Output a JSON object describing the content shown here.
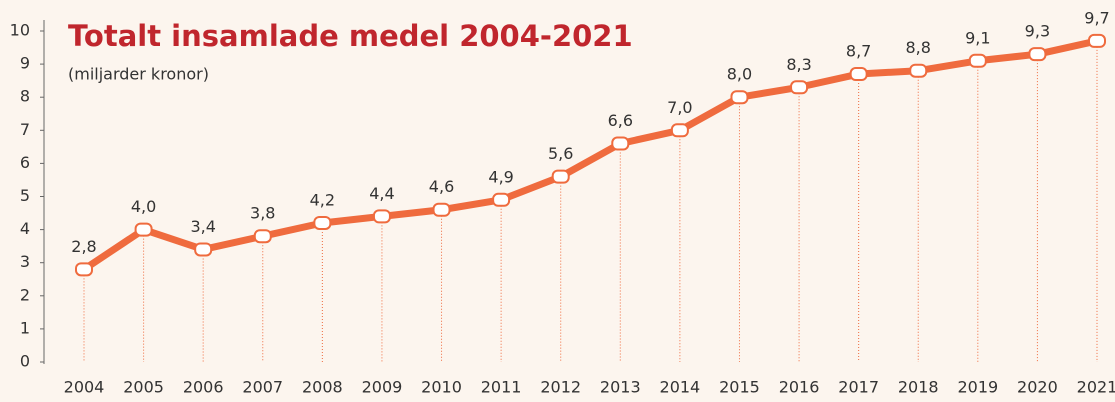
{
  "chart_data": {
    "type": "line",
    "title": "Totalt insamlade medel 2004-2021",
    "subtitle": "(miljarder kronor)",
    "categories": [
      "2004",
      "2005",
      "2006",
      "2007",
      "2008",
      "2009",
      "2010",
      "2011",
      "2012",
      "2013",
      "2014",
      "2015",
      "2016",
      "2017",
      "2018",
      "2019",
      "2020",
      "2021"
    ],
    "series": [
      {
        "name": "Totalt insamlade medel",
        "color": "#ef6b3e",
        "values": [
          2.8,
          4.0,
          3.4,
          3.8,
          4.2,
          4.4,
          4.6,
          4.9,
          5.6,
          6.6,
          7.0,
          8.0,
          8.3,
          8.7,
          8.8,
          9.1,
          9.3,
          9.7
        ],
        "value_labels": [
          "2,8",
          "4,0",
          "3,4",
          "3,8",
          "4,2",
          "4,4",
          "4,6",
          "4,9",
          "5,6",
          "6,6",
          "7,0",
          "8,0",
          "8,3",
          "8,7",
          "8,8",
          "9,1",
          "9,3",
          "9,7"
        ]
      }
    ],
    "ylim": [
      0,
      10
    ],
    "yticks": [
      0,
      1,
      2,
      3,
      4,
      5,
      6,
      7,
      8,
      9,
      10
    ],
    "grid": false
  }
}
